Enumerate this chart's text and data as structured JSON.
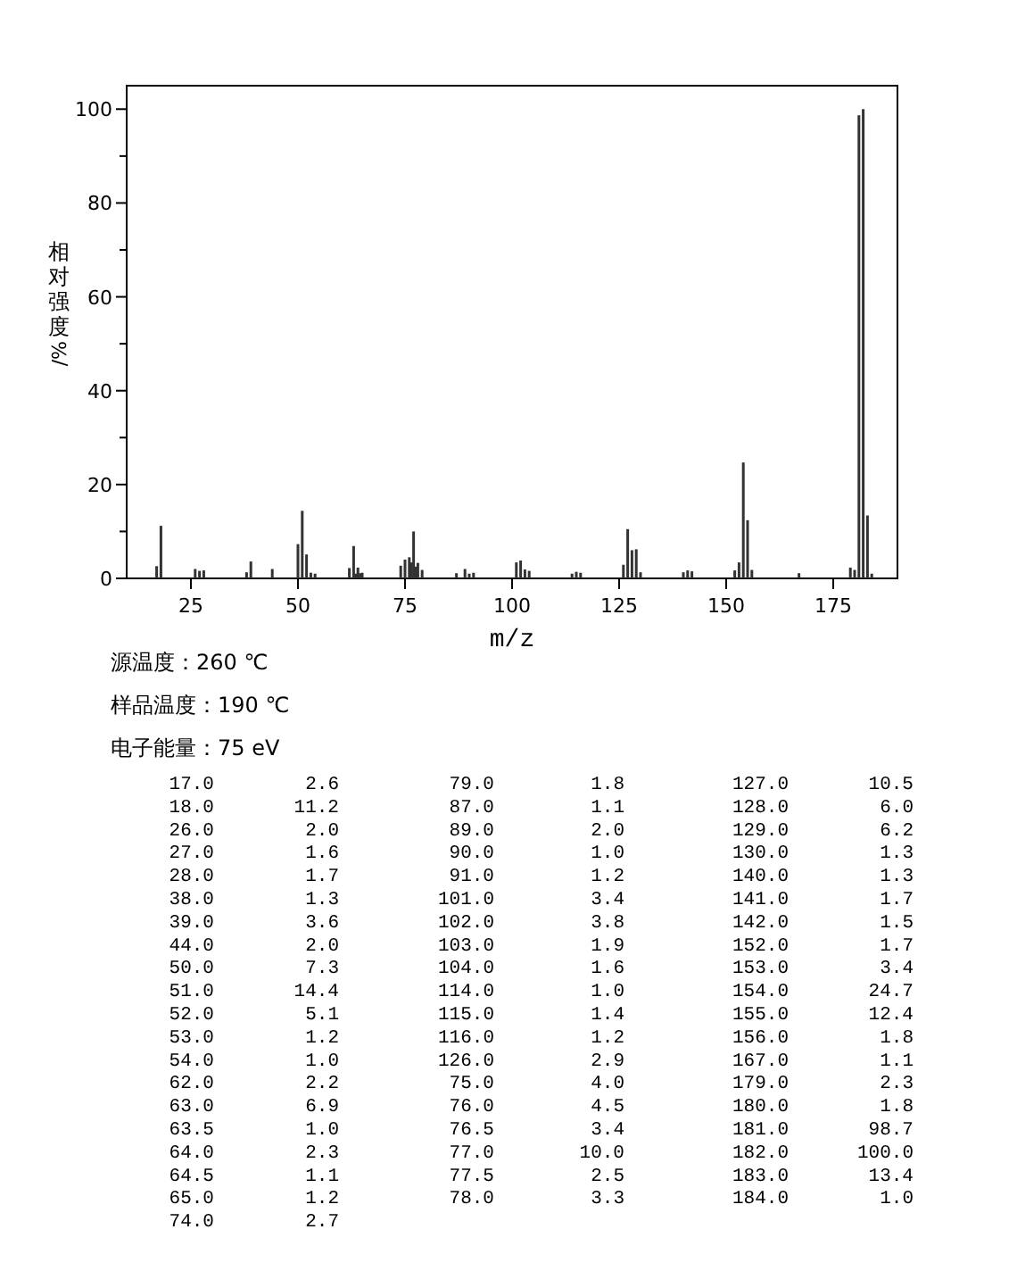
{
  "chart_data": [
    {
      "type": "bar",
      "xlabel": "m/z",
      "ylabel": "相对强度/%",
      "annotations": [
        "源温度：260 ℃",
        "样品温度：190 ℃",
        "电子能量：75 eV"
      ],
      "x": [
        17.0,
        18.0,
        26.0,
        27.0,
        28.0,
        38.0,
        39.0,
        44.0,
        50.0,
        51.0,
        52.0,
        53.0,
        54.0,
        62.0,
        63.0,
        63.5,
        64.0,
        64.5,
        65.0,
        74.0,
        75.0,
        76.0,
        76.5,
        77.0,
        77.5,
        78.0,
        79.0,
        87.0,
        89.0,
        90.0,
        91.0,
        101.0,
        102.0,
        103.0,
        104.0,
        114.0,
        115.0,
        116.0,
        126.0,
        127.0,
        128.0,
        129.0,
        130.0,
        140.0,
        141.0,
        142.0,
        152.0,
        153.0,
        154.0,
        155.0,
        156.0,
        167.0,
        179.0,
        180.0,
        181.0,
        182.0,
        183.0,
        184.0
      ],
      "values": [
        2.6,
        11.2,
        2.0,
        1.6,
        1.7,
        1.3,
        3.6,
        2.0,
        7.3,
        14.4,
        5.1,
        1.2,
        1.0,
        2.2,
        6.9,
        1.0,
        2.3,
        1.1,
        1.2,
        2.7,
        4.0,
        4.5,
        3.4,
        10.0,
        2.5,
        3.3,
        1.8,
        1.1,
        2.0,
        1.0,
        1.2,
        3.4,
        3.8,
        1.9,
        1.6,
        1.0,
        1.4,
        1.2,
        2.9,
        10.5,
        6.0,
        6.2,
        1.3,
        1.3,
        1.7,
        1.5,
        1.7,
        3.4,
        24.7,
        12.4,
        1.8,
        1.1,
        2.3,
        1.8,
        98.7,
        100.0,
        13.4,
        1.0
      ],
      "color": "#333333",
      "xlim": [
        10,
        190
      ],
      "xticks": [
        25,
        50,
        75,
        100,
        125,
        150,
        175
      ],
      "ylim": [
        0,
        105
      ],
      "yticks": [
        0,
        {
          "value": 10,
          "label": null
        },
        20,
        {
          "value": 30,
          "label": null
        },
        40,
        {
          "value": 50,
          "label": null
        },
        60,
        {
          "value": 70,
          "label": null
        },
        80,
        {
          "value": 90,
          "label": null
        },
        100
      ]
    },
    {
      "type": "other",
      "data_labels": true,
      "value_labels": [
        "2.6",
        "11.2",
        "2.0",
        "1.6",
        "1.7",
        "1.3",
        "3.6",
        "2.0",
        "7.3",
        "14.4",
        "5.1",
        "1.2",
        "1.0",
        "2.2",
        "6.9",
        "1.0",
        "2.3",
        "1.1",
        "1.2",
        "2.7",
        "1.8",
        "1.1",
        "2.0",
        "1.0",
        "1.2",
        "3.4",
        "3.8",
        "1.9",
        "1.6",
        "1.0",
        "1.4",
        "1.2",
        "2.9",
        "4.0",
        "4.5",
        "3.4",
        "10.0",
        "2.5",
        "3.3",
        "10.5",
        "6.0",
        "6.2",
        "1.3",
        "1.3",
        "1.7",
        "1.5",
        "1.7",
        "3.4",
        "24.7",
        "12.4",
        "1.8",
        "1.1",
        "2.3",
        "1.8",
        "98.7",
        "100.0",
        "13.4",
        "1.0"
      ],
      "categories": [
        "17.0",
        "18.0",
        "26.0",
        "27.0",
        "28.0",
        "38.0",
        "39.0",
        "44.0",
        "50.0",
        "51.0",
        "52.0",
        "53.0",
        "54.0",
        "62.0",
        "63.0",
        "63.5",
        "64.0",
        "64.5",
        "65.0",
        "74.0",
        "79.0",
        "87.0",
        "89.0",
        "90.0",
        "91.0",
        "101.0",
        "102.0",
        "103.0",
        "104.0",
        "114.0",
        "115.0",
        "116.0",
        "126.0",
        "75.0",
        "76.0",
        "76.5",
        "77.0",
        "77.5",
        "78.0",
        "127.0",
        "128.0",
        "129.0",
        "130.0",
        "140.0",
        "141.0",
        "142.0",
        "152.0",
        "153.0",
        "154.0",
        "155.0",
        "156.0",
        "167.0",
        "179.0",
        "180.0",
        "181.0",
        "182.0",
        "183.0",
        "184.0"
      ],
      "values": [
        2.6,
        11.2,
        2.0,
        1.6,
        1.7,
        1.3,
        3.6,
        2.0,
        7.3,
        14.4,
        5.1,
        1.2,
        1.0,
        2.2,
        6.9,
        1.0,
        2.3,
        1.1,
        1.2,
        2.7,
        1.8,
        1.1,
        2.0,
        1.0,
        1.2,
        3.4,
        3.8,
        1.9,
        1.6,
        1.0,
        1.4,
        1.2,
        2.9,
        4.0,
        4.5,
        3.4,
        10.0,
        2.5,
        3.3,
        10.5,
        6.0,
        6.2,
        1.3,
        1.3,
        1.7,
        1.5,
        1.7,
        3.4,
        24.7,
        12.4,
        1.8,
        1.1,
        2.3,
        1.8,
        98.7,
        100.0,
        13.4,
        1.0
      ]
    }
  ]
}
